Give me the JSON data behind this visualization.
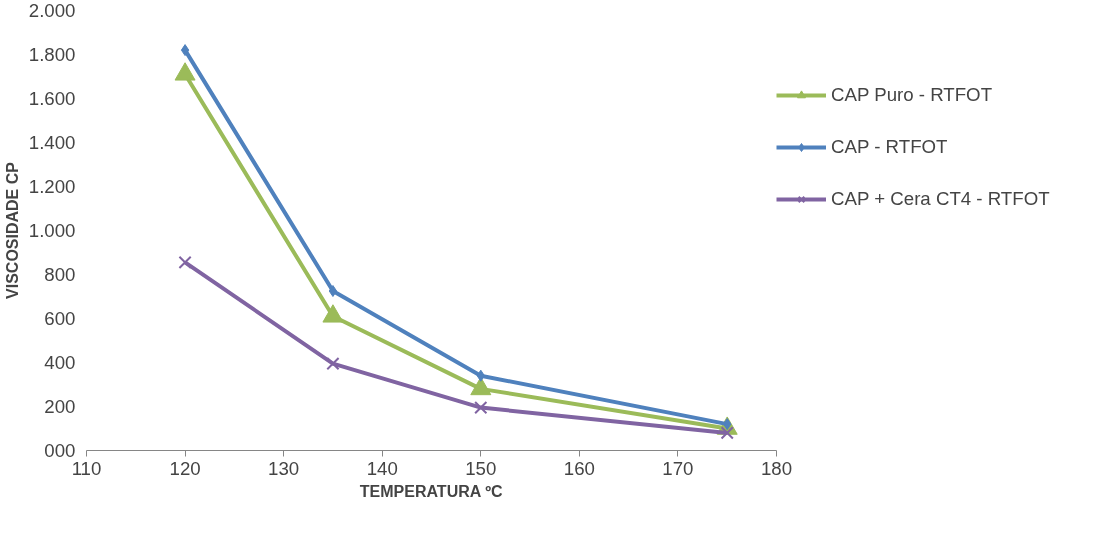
{
  "chart_data": {
    "type": "line",
    "xlabel": "TEMPERATURA ºC",
    "ylabel": "VISCOSIDADE CP",
    "x": [
      120,
      135,
      150,
      175
    ],
    "series": [
      {
        "name": "CAP Puro - RTFOT",
        "color": "#9bbb59",
        "marker": "triangle",
        "values": [
          1710,
          610,
          280,
          100
        ]
      },
      {
        "name": "CAP - RTFOT",
        "color": "#4f81bd",
        "marker": "diamond",
        "values": [
          1820,
          725,
          340,
          120
        ]
      },
      {
        "name": "CAP + Cera CT4 - RTFOT",
        "color": "#8064a2",
        "marker": "cross",
        "values": [
          855,
          395,
          195,
          80
        ]
      }
    ],
    "xlim": [
      110,
      180
    ],
    "xticks": [
      110,
      120,
      130,
      140,
      150,
      160,
      170,
      180
    ],
    "ylim": [
      0,
      2000
    ],
    "yticks": [
      {
        "value": 0,
        "label": "000"
      },
      {
        "value": 200,
        "label": "200"
      },
      {
        "value": 400,
        "label": "400"
      },
      {
        "value": 600,
        "label": "600"
      },
      {
        "value": 800,
        "label": "800"
      },
      {
        "value": 1000,
        "label": "1.000"
      },
      {
        "value": 1200,
        "label": "1.200"
      },
      {
        "value": 1400,
        "label": "1.400"
      },
      {
        "value": 1600,
        "label": "1.600"
      },
      {
        "value": 1800,
        "label": "1.800"
      },
      {
        "value": 2000,
        "label": "2.000"
      }
    ],
    "legend": "right",
    "grid": false,
    "line_style": "solid"
  }
}
